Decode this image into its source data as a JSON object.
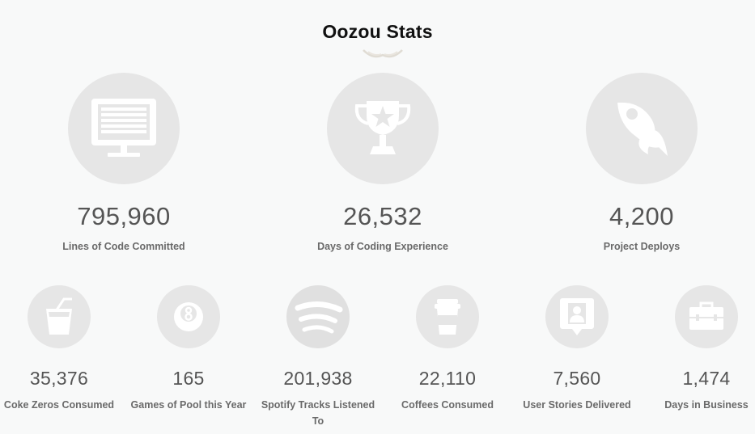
{
  "title": "Oozou Stats",
  "colors": {
    "icon_bg": "#e6e6e6",
    "icon_fg": "#ffffff",
    "number": "#555555",
    "label": "#6a6a6a",
    "title": "#111111"
  },
  "stats_primary": [
    {
      "icon": "monitor-icon",
      "value": "795,960",
      "label": "Lines of Code Committed"
    },
    {
      "icon": "trophy-icon",
      "value": "26,532",
      "label": "Days of Coding Experience"
    },
    {
      "icon": "rocket-icon",
      "value": "4,200",
      "label": "Project Deploys"
    }
  ],
  "stats_secondary": [
    {
      "icon": "soda-cup-icon",
      "value": "35,376",
      "label": "Coke Zeros Consumed"
    },
    {
      "icon": "eight-ball-icon",
      "value": "165",
      "label": "Games of Pool this Year"
    },
    {
      "icon": "spotify-icon",
      "value": "201,938",
      "label": "Spotify Tracks Listened To"
    },
    {
      "icon": "coffee-cup-icon",
      "value": "22,110",
      "label": "Coffees Consumed"
    },
    {
      "icon": "user-story-icon",
      "value": "7,560",
      "label": "User Stories Delivered"
    },
    {
      "icon": "briefcase-icon",
      "value": "1,474",
      "label": "Days in Business"
    }
  ]
}
